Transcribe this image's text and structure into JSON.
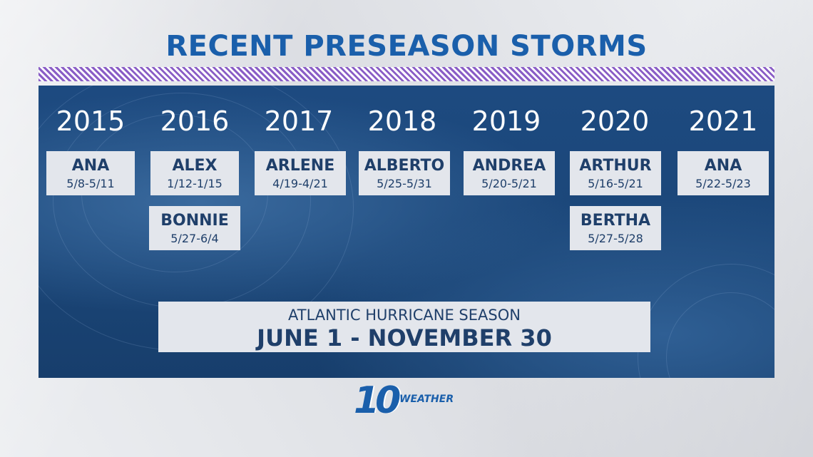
{
  "title": "RECENT PRESEASON STORMS",
  "years": [
    {
      "year": "2015",
      "storms": [
        {
          "name": "ANA",
          "dates": "5/8-5/11"
        }
      ]
    },
    {
      "year": "2016",
      "storms": [
        {
          "name": "ALEX",
          "dates": "1/12-1/15"
        },
        {
          "name": "BONNIE",
          "dates": "5/27-6/4"
        }
      ]
    },
    {
      "year": "2017",
      "storms": [
        {
          "name": "ARLENE",
          "dates": "4/19-4/21"
        }
      ]
    },
    {
      "year": "2018",
      "storms": [
        {
          "name": "ALBERTO",
          "dates": "5/25-5/31"
        }
      ]
    },
    {
      "year": "2019",
      "storms": [
        {
          "name": "ANDREA",
          "dates": "5/20-5/21"
        }
      ]
    },
    {
      "year": "2020",
      "storms": [
        {
          "name": "ARTHUR",
          "dates": "5/16-5/21"
        },
        {
          "name": "BERTHA",
          "dates": "5/27-5/28"
        }
      ]
    },
    {
      "year": "2021",
      "storms": [
        {
          "name": "ANA",
          "dates": "5/22-5/23"
        }
      ]
    }
  ],
  "season": {
    "label": "ATLANTIC HURRICANE SEASON",
    "dates": "JUNE 1 - NOVEMBER 30"
  },
  "logo": {
    "number": "10",
    "word": "WEATHER"
  },
  "colors": {
    "title": "#1a5fab",
    "panel": "#1b4678",
    "card": "#e3e6ec",
    "stripe": "#8a5ec6"
  }
}
